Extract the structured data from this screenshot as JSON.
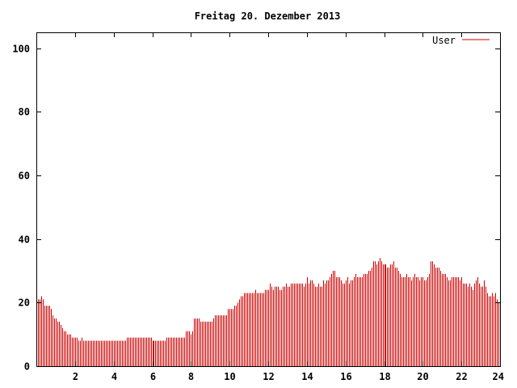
{
  "chart_data": {
    "type": "bar",
    "title": "Freitag 20. Dezember 2013",
    "xlabel": "",
    "ylabel": "",
    "xlim": [
      0,
      24
    ],
    "ylim": [
      0,
      105
    ],
    "x_ticks": [
      2,
      4,
      6,
      8,
      10,
      12,
      14,
      16,
      18,
      20,
      22,
      24
    ],
    "y_ticks": [
      0,
      20,
      40,
      60,
      80,
      100
    ],
    "grid": false,
    "legend_position": "top-right",
    "series": [
      {
        "name": "User",
        "color": "#cc0000",
        "sample_interval_minutes": 5,
        "values": [
          21,
          21,
          21,
          22,
          21,
          19,
          19,
          19,
          19,
          18,
          16,
          15,
          15,
          14,
          14,
          13,
          12,
          11,
          11,
          10,
          10,
          10,
          9,
          9,
          9,
          9,
          8,
          8,
          9,
          8,
          8,
          8,
          8,
          8,
          8,
          8,
          8,
          8,
          8,
          8,
          8,
          8,
          8,
          8,
          8,
          8,
          8,
          8,
          8,
          8,
          8,
          8,
          8,
          8,
          8,
          8,
          9,
          9,
          9,
          9,
          9,
          9,
          9,
          9,
          9,
          9,
          9,
          9,
          9,
          9,
          9,
          9,
          8,
          8,
          8,
          8,
          8,
          8,
          8,
          8,
          8,
          9,
          9,
          9,
          9,
          9,
          9,
          9,
          9,
          9,
          9,
          9,
          9,
          11,
          11,
          11,
          10,
          11,
          15,
          15,
          15,
          15,
          14,
          14,
          14,
          14,
          14,
          14,
          14,
          14,
          15,
          16,
          16,
          16,
          16,
          16,
          16,
          16,
          16,
          18,
          18,
          18,
          18,
          19,
          19,
          20,
          21,
          22,
          22,
          23,
          23,
          23,
          23,
          23,
          23,
          23,
          24,
          23,
          23,
          23,
          23,
          23,
          24,
          24,
          24,
          26,
          25,
          24,
          25,
          25,
          25,
          24,
          24,
          25,
          25,
          26,
          25,
          25,
          26,
          26,
          26,
          26,
          26,
          26,
          26,
          26,
          25,
          26,
          28,
          26,
          27,
          27,
          26,
          25,
          25,
          26,
          25,
          25,
          27,
          26,
          27,
          27,
          28,
          29,
          30,
          30,
          28,
          28,
          28,
          27,
          26,
          26,
          27,
          28,
          26,
          27,
          27,
          28,
          29,
          28,
          28,
          28,
          28,
          29,
          29,
          29,
          30,
          30,
          31,
          33,
          33,
          32,
          33,
          34,
          33,
          32,
          32,
          32,
          31,
          31,
          32,
          32,
          33,
          31,
          31,
          30,
          29,
          28,
          28,
          28,
          29,
          28,
          28,
          27,
          28,
          29,
          28,
          28,
          27,
          28,
          28,
          27,
          27,
          28,
          29,
          33,
          33,
          32,
          31,
          31,
          31,
          30,
          29,
          29,
          29,
          28,
          27,
          27,
          28,
          28,
          28,
          28,
          28,
          27,
          28,
          26,
          26,
          26,
          25,
          26,
          25,
          24,
          26,
          27,
          28,
          26,
          25,
          25,
          27,
          25,
          23,
          22,
          22,
          23,
          22,
          23,
          21,
          20
        ]
      }
    ]
  }
}
